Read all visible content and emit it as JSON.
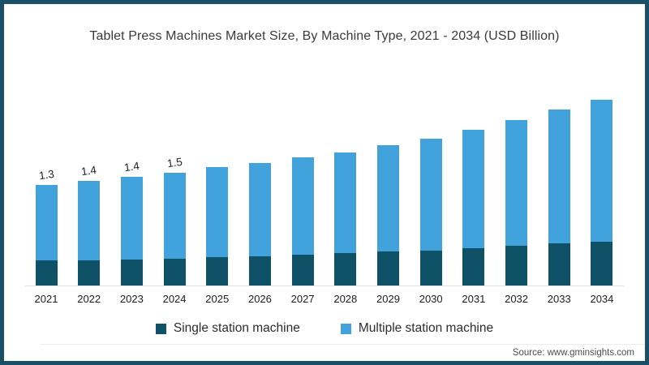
{
  "page": {
    "title": "Tablet Press Machines Market Size, By Machine Type, 2021 - 2034 (USD Billion)",
    "source_credit": "Source: www.gminsights.com"
  },
  "colors": {
    "frame_border": "#1a4f68",
    "single_station": "#0f5268",
    "multiple_station": "#42a2dc",
    "axis_line": "#e1e1e1",
    "title_text": "#3a3a3a"
  },
  "chart_data": {
    "type": "bar",
    "stacked": true,
    "title": "Tablet Press Machines Market Size, By Machine Type, 2021 - 2034 (USD Billion)",
    "xlabel": "",
    "ylabel": "USD Billion",
    "ylim": [
      0,
      2.5
    ],
    "grid": false,
    "legend_position": "bottom",
    "categories": [
      "2021",
      "2022",
      "2023",
      "2024",
      "2025",
      "2026",
      "2027",
      "2028",
      "2029",
      "2030",
      "2031",
      "2032",
      "2033",
      "2034"
    ],
    "series": [
      {
        "name": "Single station machine",
        "color": "#0f5268",
        "values": [
          0.32,
          0.33,
          0.34,
          0.35,
          0.37,
          0.38,
          0.4,
          0.42,
          0.44,
          0.45,
          0.48,
          0.51,
          0.54,
          0.57
        ]
      },
      {
        "name": "Multiple station machine",
        "color": "#42a2dc",
        "values": [
          0.98,
          1.02,
          1.06,
          1.11,
          1.16,
          1.2,
          1.26,
          1.3,
          1.37,
          1.45,
          1.53,
          1.63,
          1.73,
          1.83
        ]
      }
    ],
    "totals": [
      1.3,
      1.35,
      1.4,
      1.46,
      1.53,
      1.58,
      1.66,
      1.72,
      1.81,
      1.9,
      2.01,
      2.14,
      2.27,
      2.4
    ],
    "total_labels": [
      "1.3",
      "1.4",
      "1.4",
      "1.5",
      "",
      "",
      "",
      "",
      "",
      "",
      "",
      "",
      "",
      ""
    ]
  }
}
